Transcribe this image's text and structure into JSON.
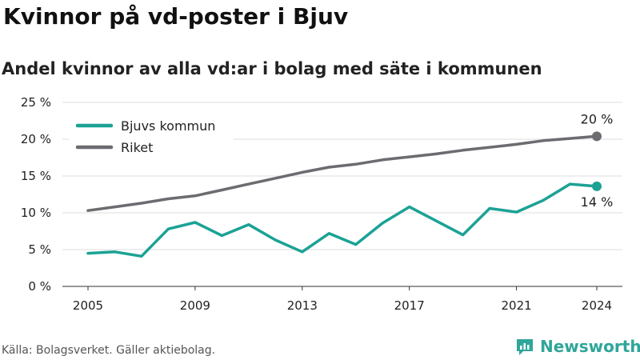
{
  "header": {
    "title": "Kvinnor på vd-poster i Bjuv",
    "subtitle": "Andel kvinnor av alla vd:ar i bolag med säte i kommunen"
  },
  "footer": {
    "source": "Källa: Bolagsverket. Gäller aktiebolag.",
    "brand_icon": "newsworthy-logo-icon",
    "brand_name": "Newsworthy"
  },
  "chart_data": {
    "type": "line",
    "x": [
      2005,
      2006,
      2007,
      2008,
      2009,
      2010,
      2011,
      2012,
      2013,
      2014,
      2015,
      2016,
      2017,
      2018,
      2019,
      2020,
      2021,
      2022,
      2023,
      2024
    ],
    "x_ticks": [
      "2005",
      "2009",
      "2013",
      "2017",
      "2021",
      "2024"
    ],
    "y_ticks": [
      "0 %",
      "5 %",
      "10 %",
      "15 %",
      "20 %",
      "25 %"
    ],
    "ylim": [
      0,
      25
    ],
    "grid": true,
    "legend_position": "top-left",
    "series": [
      {
        "name": "Bjuvs kommun",
        "color": "#1ba295",
        "values": [
          4.5,
          4.7,
          4.1,
          7.8,
          8.7,
          6.9,
          8.4,
          6.3,
          4.7,
          7.2,
          5.7,
          8.6,
          10.8,
          8.9,
          7.0,
          10.6,
          10.1,
          11.7,
          13.9,
          13.6
        ],
        "end_label": "14 %"
      },
      {
        "name": "Riket",
        "color": "#6b6b70",
        "values": [
          10.3,
          10.8,
          11.3,
          11.9,
          12.3,
          13.1,
          13.9,
          14.7,
          15.5,
          16.2,
          16.6,
          17.2,
          17.6,
          18.0,
          18.5,
          18.9,
          19.3,
          19.8,
          20.1,
          20.4
        ],
        "end_label": "20 %"
      }
    ]
  }
}
